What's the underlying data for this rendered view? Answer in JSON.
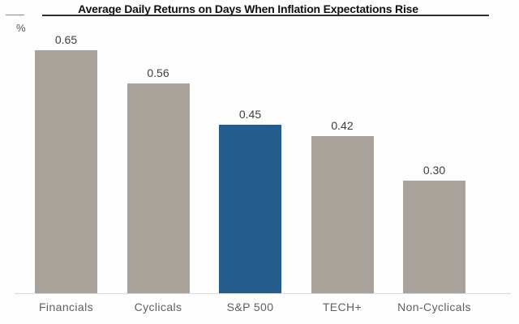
{
  "chart_data": {
    "type": "bar",
    "title": "Average Daily Returns on Days When Inflation Expectations Rise",
    "ylabel": "%",
    "xlabel": "",
    "categories": [
      "Financials",
      "Cyclicals",
      "S&P 500",
      "TECH+",
      "Non-Cyclicals"
    ],
    "values": [
      0.65,
      0.56,
      0.45,
      0.42,
      0.3
    ],
    "value_labels": [
      "0.65",
      "0.56",
      "0.45",
      "0.42",
      "0.30"
    ],
    "highlight_index": 2,
    "ylim": [
      0,
      0.72
    ],
    "grid": false,
    "legend": false,
    "colors": {
      "bar": "#A9A29B",
      "highlight": "#255C8C",
      "axis_line": "#D9D9D9",
      "title_rule": "#2F2F2F",
      "left_rule": "#8C8C8C",
      "value_label": "#3D3D3D",
      "category_label": "#5F5F5F",
      "title_text": "#111111"
    }
  }
}
